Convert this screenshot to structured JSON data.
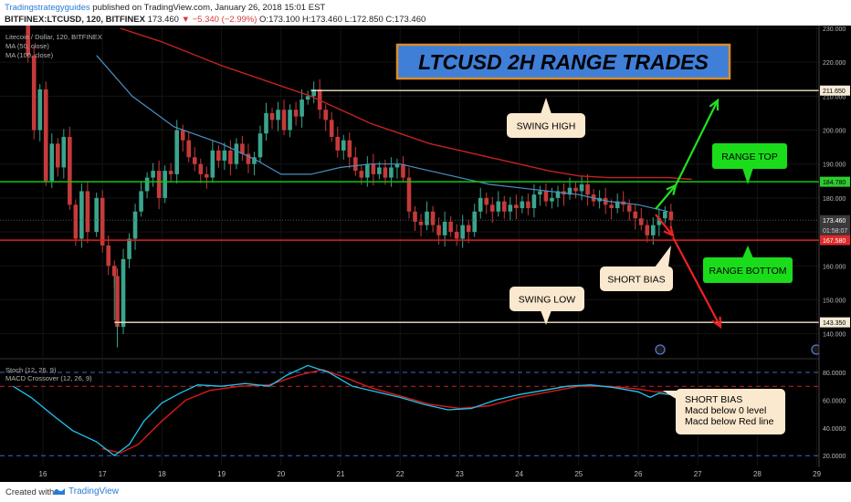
{
  "header": {
    "author": "Tradingstrategyguides",
    "published": "published on TradingView.com, January 26, 2018 15:01 EST",
    "symbol": "BITFINEX:LTCUSD, 120, BITFINEX",
    "last": "173.460",
    "change": "▼ −5.340 (−2.99%)",
    "ohlc": "O:173.100  H:173.460  L:172.850  C:173.460"
  },
  "footer": {
    "created_with": "Created with",
    "brand": "TradingView"
  },
  "colors": {
    "background": "#000000",
    "up_candle": "#3aa48c",
    "down_candle": "#c63a3a",
    "ma50": "#4a8fc2",
    "ma100": "#c42222",
    "macd": "#1ec6ef",
    "signal": "#d81a1a",
    "range_top": "#14c414",
    "range_bottom": "#e02020",
    "swing": "#efe3c8",
    "callout_bg": "#fbe9cf",
    "green_box": "#1bdc1b",
    "title_bg": "#3f7fd8",
    "title_border": "#d98c2a"
  },
  "chart_data": [
    {
      "type": "candlestick",
      "title": "LTCUSD 2H RANGE TRADES",
      "legend": [
        "Litecoin / Dollar, 120, BITFINEX",
        "MA (50, close)",
        "MA (100, close)"
      ],
      "x_ticks": [
        "16",
        "17",
        "18",
        "19",
        "20",
        "21",
        "22",
        "23",
        "24",
        "25",
        "26",
        "27",
        "28",
        "29"
      ],
      "y_ticks": [
        "230.000",
        "220.000",
        "210.000",
        "200.000",
        "190.000",
        "180.000",
        "170.000",
        "160.000",
        "150.000",
        "140.000"
      ],
      "ylim": [
        136,
        231
      ],
      "price_line": "173.460",
      "countdown": "01:58:07",
      "levels": [
        {
          "name": "swing high",
          "value": 211.65,
          "label": "211.650"
        },
        {
          "name": "range top",
          "value": 184.78,
          "label": "184.780"
        },
        {
          "name": "range bottom",
          "value": 167.58,
          "label": "167.580"
        },
        {
          "name": "swing low",
          "value": 143.35,
          "label": "143.350"
        }
      ],
      "annotations": {
        "swing_high": "SWING HIGH",
        "range_top": "RANGE TOP",
        "short_bias": "SHORT BIAS",
        "range_bottom": "RANGE BOTTOM",
        "swing_low": "SWING LOW"
      },
      "close_series": [
        {
          "x": 15.6,
          "y": 232
        },
        {
          "x": 15.75,
          "y": 222
        },
        {
          "x": 15.85,
          "y": 200
        },
        {
          "x": 15.95,
          "y": 212
        },
        {
          "x": 16.05,
          "y": 185
        },
        {
          "x": 16.15,
          "y": 196
        },
        {
          "x": 16.25,
          "y": 189
        },
        {
          "x": 16.35,
          "y": 198
        },
        {
          "x": 16.45,
          "y": 178
        },
        {
          "x": 16.55,
          "y": 168
        },
        {
          "x": 16.65,
          "y": 182
        },
        {
          "x": 16.75,
          "y": 170
        },
        {
          "x": 16.9,
          "y": 180
        },
        {
          "x": 17.0,
          "y": 166
        },
        {
          "x": 17.1,
          "y": 160
        },
        {
          "x": 17.2,
          "y": 157
        },
        {
          "x": 17.25,
          "y": 142
        },
        {
          "x": 17.35,
          "y": 162
        },
        {
          "x": 17.45,
          "y": 168
        },
        {
          "x": 17.55,
          "y": 176
        },
        {
          "x": 17.65,
          "y": 182
        },
        {
          "x": 17.75,
          "y": 186
        },
        {
          "x": 17.85,
          "y": 188
        },
        {
          "x": 17.95,
          "y": 180
        },
        {
          "x": 18.05,
          "y": 188
        },
        {
          "x": 18.15,
          "y": 187
        },
        {
          "x": 18.25,
          "y": 200
        },
        {
          "x": 18.35,
          "y": 197
        },
        {
          "x": 18.45,
          "y": 192
        },
        {
          "x": 18.55,
          "y": 190
        },
        {
          "x": 18.65,
          "y": 187
        },
        {
          "x": 18.75,
          "y": 186
        },
        {
          "x": 18.85,
          "y": 194
        },
        {
          "x": 18.95,
          "y": 191
        },
        {
          "x": 19.05,
          "y": 194
        },
        {
          "x": 19.15,
          "y": 190
        },
        {
          "x": 19.25,
          "y": 196
        },
        {
          "x": 19.35,
          "y": 193
        },
        {
          "x": 19.45,
          "y": 190
        },
        {
          "x": 19.55,
          "y": 192
        },
        {
          "x": 19.65,
          "y": 199
        },
        {
          "x": 19.75,
          "y": 205
        },
        {
          "x": 19.85,
          "y": 203
        },
        {
          "x": 19.95,
          "y": 206
        },
        {
          "x": 20.05,
          "y": 200
        },
        {
          "x": 20.15,
          "y": 206
        },
        {
          "x": 20.25,
          "y": 204
        },
        {
          "x": 20.35,
          "y": 209
        },
        {
          "x": 20.45,
          "y": 210
        },
        {
          "x": 20.55,
          "y": 212
        },
        {
          "x": 20.65,
          "y": 206
        },
        {
          "x": 20.75,
          "y": 203
        },
        {
          "x": 20.85,
          "y": 198
        },
        {
          "x": 20.95,
          "y": 194
        },
        {
          "x": 21.05,
          "y": 197
        },
        {
          "x": 21.15,
          "y": 192
        },
        {
          "x": 21.25,
          "y": 188
        },
        {
          "x": 21.35,
          "y": 186
        },
        {
          "x": 21.45,
          "y": 190
        },
        {
          "x": 21.55,
          "y": 187
        },
        {
          "x": 21.65,
          "y": 189
        },
        {
          "x": 21.75,
          "y": 186
        },
        {
          "x": 21.85,
          "y": 189
        },
        {
          "x": 21.95,
          "y": 190
        },
        {
          "x": 22.05,
          "y": 186
        },
        {
          "x": 22.15,
          "y": 176
        },
        {
          "x": 22.25,
          "y": 173
        },
        {
          "x": 22.35,
          "y": 172
        },
        {
          "x": 22.45,
          "y": 176
        },
        {
          "x": 22.55,
          "y": 172
        },
        {
          "x": 22.65,
          "y": 169
        },
        {
          "x": 22.75,
          "y": 173
        },
        {
          "x": 22.85,
          "y": 170
        },
        {
          "x": 22.95,
          "y": 168
        },
        {
          "x": 23.05,
          "y": 172
        },
        {
          "x": 23.15,
          "y": 170
        },
        {
          "x": 23.25,
          "y": 176
        },
        {
          "x": 23.35,
          "y": 180
        },
        {
          "x": 23.45,
          "y": 178
        },
        {
          "x": 23.55,
          "y": 176
        },
        {
          "x": 23.65,
          "y": 179
        },
        {
          "x": 23.75,
          "y": 176
        },
        {
          "x": 23.85,
          "y": 178
        },
        {
          "x": 23.95,
          "y": 177
        },
        {
          "x": 24.05,
          "y": 179
        },
        {
          "x": 24.15,
          "y": 177
        },
        {
          "x": 24.25,
          "y": 181
        },
        {
          "x": 24.35,
          "y": 182
        },
        {
          "x": 24.45,
          "y": 179
        },
        {
          "x": 24.55,
          "y": 180
        },
        {
          "x": 24.65,
          "y": 182
        },
        {
          "x": 24.75,
          "y": 181
        },
        {
          "x": 24.85,
          "y": 183
        },
        {
          "x": 24.95,
          "y": 182
        },
        {
          "x": 25.05,
          "y": 184
        },
        {
          "x": 25.15,
          "y": 181
        },
        {
          "x": 25.25,
          "y": 179
        },
        {
          "x": 25.35,
          "y": 180
        },
        {
          "x": 25.45,
          "y": 178
        },
        {
          "x": 25.55,
          "y": 177
        },
        {
          "x": 25.65,
          "y": 179
        },
        {
          "x": 25.75,
          "y": 178
        },
        {
          "x": 25.85,
          "y": 176
        },
        {
          "x": 25.95,
          "y": 174
        },
        {
          "x": 26.05,
          "y": 172
        },
        {
          "x": 26.15,
          "y": 169
        },
        {
          "x": 26.25,
          "y": 172
        },
        {
          "x": 26.35,
          "y": 174
        },
        {
          "x": 26.45,
          "y": 176
        },
        {
          "x": 26.55,
          "y": 173.46
        }
      ],
      "ma50": [
        {
          "x": 16.9,
          "y": 222
        },
        {
          "x": 17.5,
          "y": 210
        },
        {
          "x": 18.2,
          "y": 201
        },
        {
          "x": 19.0,
          "y": 196
        },
        {
          "x": 19.6,
          "y": 191
        },
        {
          "x": 20.0,
          "y": 187
        },
        {
          "x": 20.5,
          "y": 187
        },
        {
          "x": 21.0,
          "y": 189
        },
        {
          "x": 21.5,
          "y": 190
        },
        {
          "x": 22.0,
          "y": 190
        },
        {
          "x": 22.5,
          "y": 188
        },
        {
          "x": 23.0,
          "y": 186
        },
        {
          "x": 23.5,
          "y": 184
        },
        {
          "x": 24.0,
          "y": 183
        },
        {
          "x": 24.5,
          "y": 182
        },
        {
          "x": 25.0,
          "y": 181
        },
        {
          "x": 25.5,
          "y": 179
        },
        {
          "x": 26.0,
          "y": 178
        },
        {
          "x": 26.5,
          "y": 176
        }
      ],
      "ma100": [
        {
          "x": 17.3,
          "y": 230
        },
        {
          "x": 18.0,
          "y": 226
        },
        {
          "x": 19.0,
          "y": 219
        },
        {
          "x": 20.0,
          "y": 213
        },
        {
          "x": 20.5,
          "y": 210
        },
        {
          "x": 21.0,
          "y": 206
        },
        {
          "x": 21.5,
          "y": 202
        },
        {
          "x": 22.0,
          "y": 199
        },
        {
          "x": 22.5,
          "y": 196
        },
        {
          "x": 23.0,
          "y": 194
        },
        {
          "x": 23.5,
          "y": 192
        },
        {
          "x": 24.0,
          "y": 190
        },
        {
          "x": 24.5,
          "y": 188
        },
        {
          "x": 25.0,
          "y": 186.5
        },
        {
          "x": 25.5,
          "y": 186
        },
        {
          "x": 26.0,
          "y": 186
        },
        {
          "x": 26.5,
          "y": 186
        },
        {
          "x": 26.9,
          "y": 185.5
        }
      ]
    },
    {
      "type": "line",
      "legend": [
        "Stoch (12, 26, 9)",
        "MACD Crossover (12, 26, 9)"
      ],
      "y_ticks": [
        "80.0000",
        "60.0000",
        "40.0000",
        "20.0000"
      ],
      "ylim": [
        10,
        88
      ],
      "annotation": [
        "SHORT BIAS",
        "Macd below 0 level",
        "Macd below Red line"
      ],
      "macd": [
        {
          "x": 15.5,
          "y": 70
        },
        {
          "x": 15.8,
          "y": 62
        },
        {
          "x": 16.2,
          "y": 48
        },
        {
          "x": 16.5,
          "y": 38
        },
        {
          "x": 16.9,
          "y": 30
        },
        {
          "x": 17.2,
          "y": 20
        },
        {
          "x": 17.45,
          "y": 28
        },
        {
          "x": 17.7,
          "y": 45
        },
        {
          "x": 18.0,
          "y": 58
        },
        {
          "x": 18.3,
          "y": 65
        },
        {
          "x": 18.6,
          "y": 71
        },
        {
          "x": 19.0,
          "y": 70
        },
        {
          "x": 19.4,
          "y": 72
        },
        {
          "x": 19.8,
          "y": 70
        },
        {
          "x": 20.1,
          "y": 78
        },
        {
          "x": 20.45,
          "y": 85
        },
        {
          "x": 20.8,
          "y": 80
        },
        {
          "x": 21.2,
          "y": 70
        },
        {
          "x": 21.6,
          "y": 66
        },
        {
          "x": 22.0,
          "y": 62
        },
        {
          "x": 22.4,
          "y": 57
        },
        {
          "x": 22.8,
          "y": 53
        },
        {
          "x": 23.2,
          "y": 54
        },
        {
          "x": 23.6,
          "y": 60
        },
        {
          "x": 24.0,
          "y": 64
        },
        {
          "x": 24.4,
          "y": 67
        },
        {
          "x": 24.8,
          "y": 70
        },
        {
          "x": 25.2,
          "y": 71
        },
        {
          "x": 25.6,
          "y": 69
        },
        {
          "x": 26.0,
          "y": 66
        },
        {
          "x": 26.2,
          "y": 62
        },
        {
          "x": 26.35,
          "y": 65
        },
        {
          "x": 26.55,
          "y": 64
        }
      ],
      "signal": [
        {
          "x": 17.0,
          "y": 25
        },
        {
          "x": 17.3,
          "y": 22
        },
        {
          "x": 17.6,
          "y": 28
        },
        {
          "x": 18.0,
          "y": 45
        },
        {
          "x": 18.4,
          "y": 60
        },
        {
          "x": 18.8,
          "y": 67
        },
        {
          "x": 19.3,
          "y": 70
        },
        {
          "x": 19.8,
          "y": 71
        },
        {
          "x": 20.3,
          "y": 78
        },
        {
          "x": 20.7,
          "y": 82
        },
        {
          "x": 21.1,
          "y": 76
        },
        {
          "x": 21.5,
          "y": 69
        },
        {
          "x": 22.0,
          "y": 63
        },
        {
          "x": 22.5,
          "y": 57
        },
        {
          "x": 23.0,
          "y": 54
        },
        {
          "x": 23.5,
          "y": 56
        },
        {
          "x": 24.0,
          "y": 62
        },
        {
          "x": 24.5,
          "y": 66
        },
        {
          "x": 25.0,
          "y": 70
        },
        {
          "x": 25.5,
          "y": 70
        },
        {
          "x": 26.0,
          "y": 68
        },
        {
          "x": 26.3,
          "y": 66
        },
        {
          "x": 26.55,
          "y": 66
        }
      ],
      "reference_lines": [
        80,
        70,
        20
      ]
    }
  ]
}
